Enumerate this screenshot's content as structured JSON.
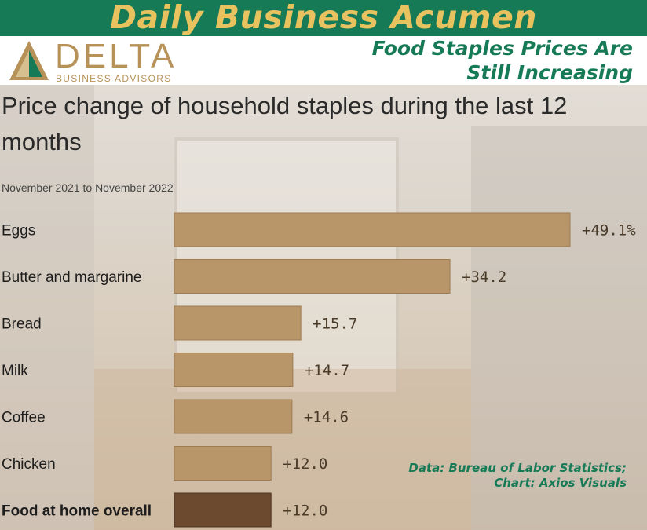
{
  "banner": {
    "title": "Daily Business Acumen",
    "headline_line1": "Food Staples Prices Are",
    "headline_line2": "Still Increasing",
    "colors": {
      "banner_bg": "#157a55",
      "banner_text": "#e8c25f",
      "headline": "#157a55"
    }
  },
  "logo": {
    "word": "DELTA",
    "subtitle": "BUSINESS ADVISORS",
    "icon": "delta-triangle-logo",
    "color": "#b69259"
  },
  "source": {
    "line1": "Data: Bureau of Labor Statistics;",
    "line2": "Chart: Axios Visuals"
  },
  "chart_data": {
    "type": "bar",
    "orientation": "horizontal",
    "title": "Price change of household staples during the last 12 months",
    "subtitle": "November 2021 to November 2022",
    "categories": [
      "Eggs",
      "Butter and margarine",
      "Bread",
      "Milk",
      "Coffee",
      "Chicken",
      "Food at home overall"
    ],
    "values": [
      49.1,
      34.2,
      15.7,
      14.7,
      14.6,
      12.0,
      12.0
    ],
    "value_labels": [
      "+49.1%",
      "+34.2",
      "+15.7",
      "+14.7",
      "+14.6",
      "+12.0",
      "+12.0"
    ],
    "highlight_category": "Food at home overall",
    "colors": {
      "bar": "#b89669",
      "highlight_bar": "#6b4a30"
    },
    "unit": "%",
    "xlim": [
      0,
      49.1
    ],
    "grid": false,
    "legend": "none"
  }
}
